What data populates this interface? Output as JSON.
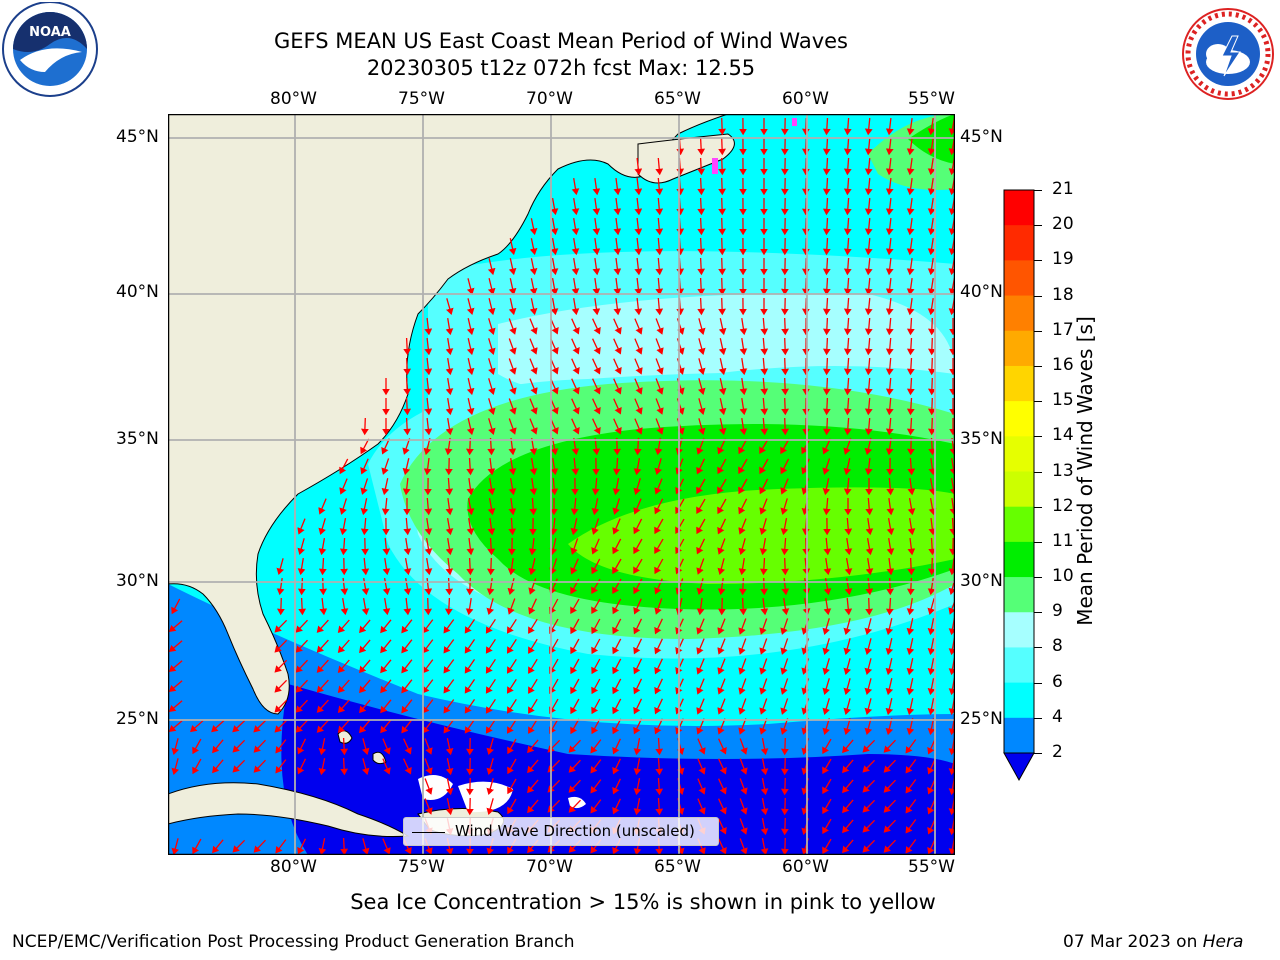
{
  "header": {
    "title_line1": "GEFS MEAN US East Coast Mean Period of Wind Waves",
    "title_line2": "20230305 t12z 072h fcst   Max: 12.55"
  },
  "logos": {
    "left": {
      "text": "NOAA",
      "ring_text": "NATIONAL OCEANIC AND ATMOSPHERIC ADMINISTRATION · U.S. DEPARTMENT OF COMMERCE"
    },
    "right": {
      "ring_text": "NATIONAL WEATHER SERVICE"
    }
  },
  "map": {
    "lon_labels": [
      "80°W",
      "75°W",
      "70°W",
      "65°W",
      "60°W",
      "55°W"
    ],
    "lat_labels": [
      "45°N",
      "40°N",
      "35°N",
      "30°N",
      "25°N"
    ],
    "legend_label": "Wind Wave Direction (unscaled)",
    "arrow_color": "#ff0000",
    "land_color": "#efeedc"
  },
  "colorbar": {
    "label": "Mean Period of Wind Waves [s]",
    "ticks": [
      "21",
      "20",
      "19",
      "18",
      "17",
      "16",
      "15",
      "14",
      "13",
      "12",
      "11",
      "10",
      "9",
      "8",
      "6",
      "4",
      "2"
    ],
    "colors_top_to_bottom": [
      "#ff0000",
      "#ff2a00",
      "#ff5500",
      "#ff8000",
      "#ffaa00",
      "#ffd500",
      "#ffff00",
      "#e6ff00",
      "#ccff00",
      "#66ff00",
      "#00ee00",
      "#55ff77",
      "#a6ffff",
      "#55ffff",
      "#00ffff",
      "#0088ff"
    ],
    "extend_color": "#0000ee"
  },
  "footer": {
    "ice_note": "Sea Ice Concentration > 15% is shown in pink to yellow",
    "left": "NCEP/EMC/Verification Post Processing Product Generation Branch",
    "date": "07 Mar 2023 on ",
    "machine": "Hera"
  }
}
